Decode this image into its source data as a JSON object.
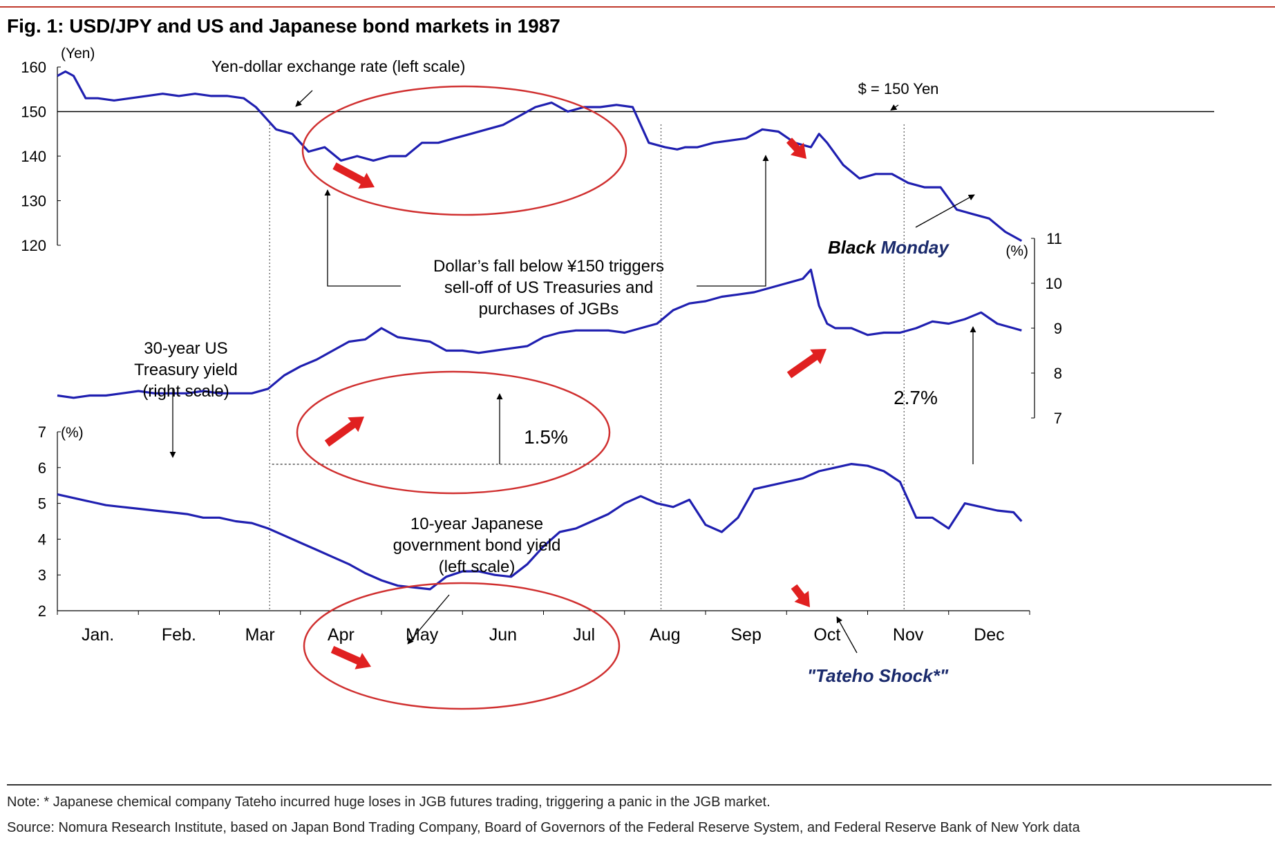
{
  "title": "Fig. 1: USD/JPY and US and Japanese bond markets in 1987",
  "note": "Note: * Japanese chemical company Tateho incurred huge loses in JGB futures trading, triggering a panic in the JGB market.",
  "source": "Source: Nomura Research Institute, based on Japan Bond Trading Company, Board of Governors of the Federal Reserve System, and Federal Reserve Bank of New York data",
  "colors": {
    "series": "#1f1fb0",
    "ellipse": "#d03030",
    "arrow": "#e02020",
    "annotation_blue": "#1a2a6c",
    "rule": "#c0392b"
  },
  "chart_data": {
    "type": "line",
    "x_ticks": [
      "Jan.",
      "Feb.",
      "Mar",
      "Apr",
      "May",
      "Jun",
      "Jul",
      "Aug",
      "Sep",
      "Oct",
      "Nov",
      "Dec"
    ],
    "x_range_months": [
      0,
      12
    ],
    "axes": {
      "yen": {
        "unit": "(Yen)",
        "ticks": [
          "160",
          "150",
          "140",
          "130",
          "120"
        ],
        "ylim": [
          120,
          160
        ],
        "side": "left"
      },
      "ust": {
        "unit": "(%)",
        "ticks": [
          "11",
          "10",
          "9",
          "8",
          "7"
        ],
        "ylim": [
          7,
          11
        ],
        "side": "right"
      },
      "jgb": {
        "unit": "(%)",
        "ticks": [
          "7",
          "6",
          "5",
          "4",
          "3",
          "2"
        ],
        "ylim": [
          2,
          7
        ],
        "side": "left"
      }
    },
    "series": [
      {
        "name": "Yen-dollar exchange rate (left scale)",
        "axis": "yen",
        "x": [
          0,
          0.1,
          0.2,
          0.35,
          0.5,
          0.7,
          0.9,
          1.1,
          1.3,
          1.5,
          1.7,
          1.9,
          2.1,
          2.3,
          2.45,
          2.6,
          2.7,
          2.9,
          3.1,
          3.3,
          3.5,
          3.7,
          3.9,
          4.1,
          4.3,
          4.5,
          4.7,
          4.9,
          5.1,
          5.3,
          5.5,
          5.7,
          5.9,
          6.1,
          6.3,
          6.5,
          6.7,
          6.9,
          7.1,
          7.3,
          7.5,
          7.65,
          7.75,
          7.9,
          8.1,
          8.3,
          8.5,
          8.7,
          8.9,
          9.1,
          9.3,
          9.4,
          9.5,
          9.7,
          9.9,
          10.1,
          10.3,
          10.5,
          10.7,
          10.9,
          11.1,
          11.3,
          11.5,
          11.7,
          11.9
        ],
        "values": [
          158,
          159,
          158,
          153,
          153,
          152.5,
          153,
          153.5,
          154,
          153.5,
          154,
          153.5,
          153.5,
          153,
          151,
          148,
          146,
          145,
          141,
          142,
          139,
          140,
          139,
          140,
          140,
          143,
          143,
          144,
          145,
          146,
          147,
          149,
          151,
          152,
          150,
          151,
          151,
          151.5,
          151,
          143,
          142,
          141.5,
          142,
          142,
          143,
          143.5,
          144,
          146,
          145.5,
          143,
          142,
          145,
          143,
          138,
          135,
          136,
          136,
          134,
          133,
          133,
          128,
          127,
          126,
          123,
          121
        ]
      },
      {
        "name": "30-year US Treasury yield (right scale)",
        "axis": "ust",
        "x": [
          0,
          0.2,
          0.4,
          0.6,
          0.8,
          1.0,
          1.2,
          1.4,
          1.6,
          1.8,
          2.0,
          2.2,
          2.4,
          2.6,
          2.8,
          3.0,
          3.2,
          3.4,
          3.6,
          3.8,
          4.0,
          4.2,
          4.4,
          4.6,
          4.8,
          5.0,
          5.2,
          5.4,
          5.6,
          5.8,
          6.0,
          6.2,
          6.4,
          6.6,
          6.8,
          7.0,
          7.2,
          7.4,
          7.6,
          7.8,
          8.0,
          8.2,
          8.4,
          8.6,
          8.8,
          9.0,
          9.2,
          9.3,
          9.4,
          9.5,
          9.6,
          9.8,
          10.0,
          10.2,
          10.4,
          10.6,
          10.8,
          11.0,
          11.2,
          11.4,
          11.6,
          11.8,
          11.9
        ],
        "values": [
          7.5,
          7.45,
          7.5,
          7.5,
          7.55,
          7.6,
          7.55,
          7.55,
          7.55,
          7.6,
          7.55,
          7.55,
          7.55,
          7.65,
          7.95,
          8.15,
          8.3,
          8.5,
          8.7,
          8.75,
          9.0,
          8.8,
          8.75,
          8.7,
          8.5,
          8.5,
          8.45,
          8.5,
          8.55,
          8.6,
          8.8,
          8.9,
          8.95,
          8.95,
          8.95,
          8.9,
          9.0,
          9.1,
          9.4,
          9.55,
          9.6,
          9.7,
          9.75,
          9.8,
          9.9,
          10.0,
          10.1,
          10.3,
          9.5,
          9.1,
          9.0,
          9.0,
          8.85,
          8.9,
          8.9,
          9.0,
          9.15,
          9.1,
          9.2,
          9.35,
          9.1,
          9.0,
          8.95
        ]
      },
      {
        "name": "10-year Japanese government bond yield (left scale)",
        "axis": "jgb",
        "x": [
          0,
          0.2,
          0.4,
          0.6,
          0.8,
          1.0,
          1.2,
          1.4,
          1.6,
          1.8,
          2.0,
          2.2,
          2.4,
          2.6,
          2.8,
          3.0,
          3.2,
          3.4,
          3.6,
          3.8,
          4.0,
          4.2,
          4.4,
          4.6,
          4.8,
          5.0,
          5.2,
          5.4,
          5.6,
          5.8,
          6.0,
          6.2,
          6.4,
          6.6,
          6.8,
          7.0,
          7.2,
          7.4,
          7.6,
          7.8,
          8.0,
          8.2,
          8.4,
          8.6,
          8.8,
          9.0,
          9.2,
          9.4,
          9.6,
          9.8,
          10.0,
          10.2,
          10.4,
          10.6,
          10.8,
          11.0,
          11.2,
          11.4,
          11.6,
          11.8,
          11.9
        ],
        "values": [
          5.25,
          5.15,
          5.05,
          4.95,
          4.9,
          4.85,
          4.8,
          4.75,
          4.7,
          4.6,
          4.6,
          4.5,
          4.45,
          4.3,
          4.1,
          3.9,
          3.7,
          3.5,
          3.3,
          3.05,
          2.85,
          2.7,
          2.65,
          2.6,
          2.95,
          3.1,
          3.1,
          3.0,
          2.95,
          3.3,
          3.8,
          4.2,
          4.3,
          4.5,
          4.7,
          5.0,
          5.2,
          5.0,
          4.9,
          5.1,
          4.4,
          4.2,
          4.6,
          5.4,
          5.5,
          5.6,
          5.7,
          5.9,
          6.0,
          6.1,
          6.05,
          5.9,
          5.6,
          4.6,
          4.6,
          4.3,
          5.0,
          4.9,
          4.8,
          4.75,
          4.5
        ]
      }
    ],
    "reference_lines": [
      {
        "axis": "yen",
        "value": 150,
        "label": "$ = 150 Yen"
      }
    ],
    "annotations": {
      "yen_label": "Yen-dollar exchange rate (left scale)",
      "ust_label": [
        "30-year US",
        "Treasury yield",
        "(right scale)"
      ],
      "jgb_label": [
        "10-year Japanese",
        "government bond yield",
        "(left scale)"
      ],
      "trigger_text": [
        "Dollar’s fall below ¥150 triggers",
        "sell-off of US Treasuries and",
        "purchases of JGBs"
      ],
      "black_monday_part1": "Black",
      "black_monday_part2": "Monday",
      "tateho": "\"Tateho Shock*\"",
      "rise_1": "1.5%",
      "rise_2": "2.7%"
    }
  }
}
